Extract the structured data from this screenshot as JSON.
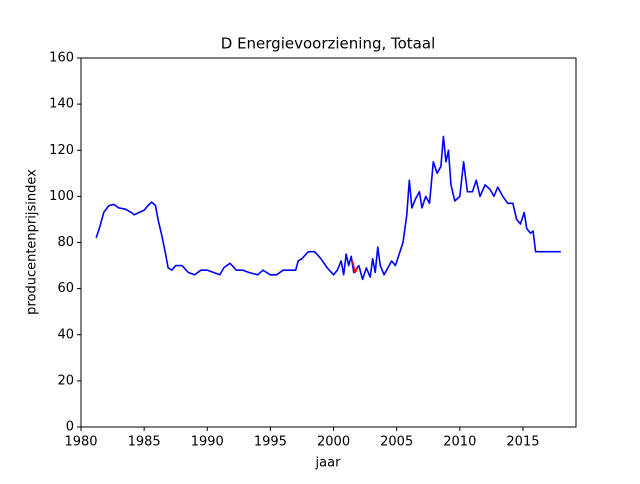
{
  "chart_data": {
    "type": "line",
    "title": "D Energievoorziening, Totaal",
    "xlabel": "jaar",
    "ylabel": "producentenprijsindex",
    "xlim": [
      1980,
      2019.2
    ],
    "xticks": [
      1980,
      1985,
      1990,
      1995,
      2000,
      2005,
      2010,
      2015
    ],
    "ylim": [
      0,
      160
    ],
    "yticks": [
      0,
      20,
      40,
      60,
      80,
      100,
      120,
      140,
      160
    ],
    "series": [
      {
        "color": "#0000ff",
        "x": [
          1981.2,
          1981.5,
          1981.8,
          1982.2,
          1982.6,
          1983,
          1983.5,
          1984,
          1984.2,
          1984.6,
          1985,
          1985.3,
          1985.6,
          1985.9,
          1986.1,
          1986.4,
          1986.7,
          1986.9,
          1987.2,
          1987.5,
          1988,
          1988.5,
          1989,
          1989.5,
          1990,
          1990.5,
          1991,
          1991.3,
          1991.8,
          1992.3,
          1992.8,
          1993.3,
          1994,
          1994.4,
          1995,
          1995.5,
          1996,
          1996.5,
          1997,
          1997.2,
          1997.5,
          1998,
          1998.5,
          1999,
          1999.5,
          2000,
          2000.3,
          2000.6,
          2000.8,
          2001,
          2001.2,
          2001.4,
          2001.6,
          2002,
          2002.3,
          2002.6,
          2002.9,
          2003.1,
          2003.3,
          2003.5,
          2003.7,
          2004,
          2004.3,
          2004.6,
          2004.9,
          2005.2,
          2005.5,
          2005.8,
          2006,
          2006.2,
          2006.5,
          2006.8,
          2007,
          2007.3,
          2007.6,
          2007.9,
          2008.2,
          2008.5,
          2008.7,
          2008.9,
          2009.1,
          2009.3,
          2009.6,
          2010,
          2010.3,
          2010.6,
          2011,
          2011.3,
          2011.6,
          2012,
          2012.4,
          2012.7,
          2013,
          2013.4,
          2013.8,
          2014.2,
          2014.5,
          2014.8,
          2015.1,
          2015.3,
          2015.6,
          2015.8,
          2016,
          2018
        ],
        "values": [
          82,
          87,
          93,
          96,
          96.5,
          95,
          94.5,
          93,
          92,
          93,
          94,
          96,
          97.5,
          96,
          90,
          83,
          75,
          69,
          68,
          70,
          70,
          67,
          66,
          68,
          68,
          67,
          66,
          69,
          71,
          68,
          68,
          67,
          66,
          68,
          66,
          66,
          68,
          68,
          68,
          72,
          73,
          76,
          76,
          73,
          69,
          66,
          68,
          72,
          66,
          75,
          70,
          74,
          67,
          70,
          64,
          69,
          65,
          73,
          67,
          78,
          70,
          66,
          69,
          72,
          70,
          75,
          80,
          92,
          107,
          95,
          99,
          102,
          95,
          100,
          97,
          115,
          110,
          113,
          126,
          115,
          120,
          105,
          98,
          100,
          115,
          102,
          102,
          107,
          100,
          105,
          103,
          100,
          104,
          100,
          97,
          97,
          90,
          88,
          93,
          86,
          84,
          85,
          76,
          76
        ]
      },
      {
        "color": "#ff0000",
        "x": [
          2001.5,
          2001.7,
          2001.9
        ],
        "values": [
          72,
          67,
          69
        ]
      }
    ]
  }
}
